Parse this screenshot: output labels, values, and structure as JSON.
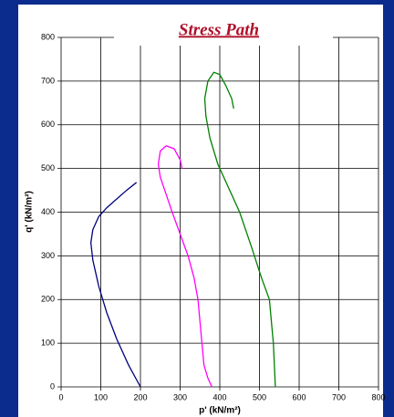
{
  "chart_data": {
    "type": "line",
    "title": "Stress Path",
    "x_label": "p' (kN/m²)",
    "y_label": "q' (kN/m²)",
    "xlim": [
      0,
      800
    ],
    "xticks": [
      0,
      100,
      200,
      300,
      400,
      500,
      600,
      700,
      800
    ],
    "ylim": [
      0,
      800
    ],
    "yticks": [
      0,
      100,
      200,
      300,
      400,
      500,
      600,
      700,
      800
    ],
    "grid": true,
    "series": [
      {
        "color": "#000080",
        "x": [
          200,
          170,
          140,
          115,
          95,
          80,
          75,
          80,
          95,
          115,
          140,
          165,
          190
        ],
        "values": [
          0,
          50,
          110,
          170,
          230,
          290,
          330,
          360,
          390,
          410,
          430,
          450,
          468
        ]
      },
      {
        "color": "#ff00ff",
        "x": [
          380,
          370,
          360,
          355,
          350,
          345,
          335,
          320,
          300,
          280,
          265,
          250,
          245,
          250,
          265,
          285,
          300,
          305
        ],
        "values": [
          0,
          20,
          50,
          100,
          150,
          200,
          250,
          300,
          350,
          400,
          440,
          480,
          510,
          540,
          552,
          545,
          520,
          499
        ]
      },
      {
        "color": "#008000",
        "x": [
          540,
          535,
          525,
          505,
          480,
          450,
          420,
          395,
          375,
          365,
          362,
          370,
          385,
          400,
          415,
          430,
          435
        ],
        "values": [
          0,
          100,
          200,
          250,
          320,
          400,
          460,
          510,
          570,
          620,
          660,
          700,
          720,
          715,
          690,
          660,
          637
        ]
      }
    ]
  }
}
